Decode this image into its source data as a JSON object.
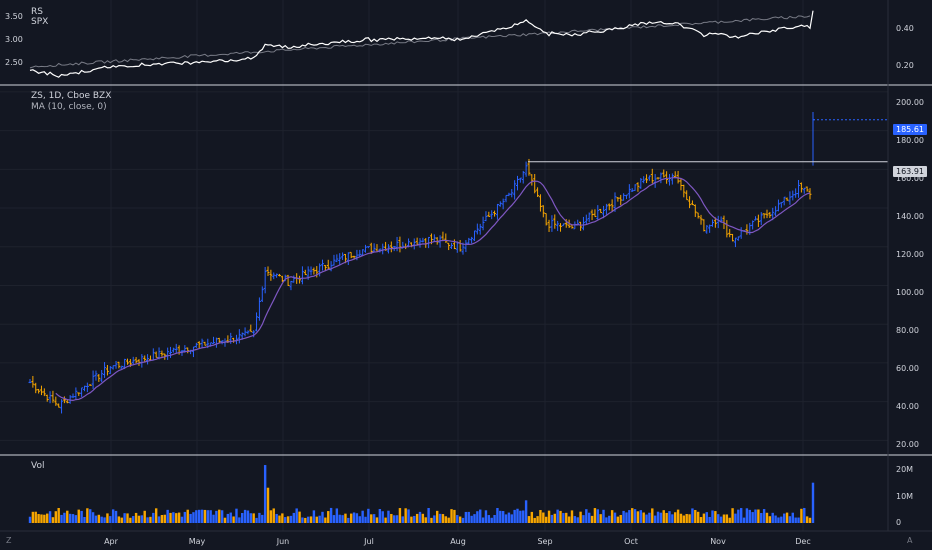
{
  "colors": {
    "background": "#131722",
    "grid": "#1e222d",
    "separator": "#d1d4dc",
    "up": "#2962ff",
    "down": "#f7a600",
    "ma": "#7e57c2",
    "rs": "#ffffff",
    "spx": "#787b86",
    "last_price_bg": "#2962ff",
    "resistance_bg": "#d1d4dc"
  },
  "rs_pane": {
    "labels": [
      "RS",
      "SPX"
    ],
    "left_ticks": [
      "3.50",
      "3.00",
      "2.50"
    ],
    "right_ticks": [
      "0.40",
      "0.20"
    ]
  },
  "price_pane": {
    "symbol_title": "ZS, 1D, Cboe BZX",
    "indicator_title": "MA (10, close, 0)",
    "y_ticks": [
      "200.00",
      "180.00",
      "160.00",
      "140.00",
      "120.00",
      "100.00",
      "80.00",
      "60.00",
      "40.00",
      "20.00"
    ],
    "last_price_tag": "185.61",
    "resistance_tag": "163.91"
  },
  "volume_pane": {
    "label": "Vol",
    "y_ticks": [
      "20M",
      "10M",
      "0"
    ]
  },
  "time_axis": {
    "months": [
      "Apr",
      "May",
      "Jun",
      "Jul",
      "Aug",
      "Sep",
      "Oct",
      "Nov",
      "Dec"
    ]
  },
  "corner_icons": [
    "timezone-icon",
    "auto-scale-icon"
  ],
  "chart_data": {
    "type": "candlestick",
    "symbol": "ZS",
    "interval": "1D",
    "exchange": "Cboe BZX",
    "key_points": [
      {
        "x": "Mar",
        "close": 50
      },
      {
        "x": "Apr",
        "close": 58
      },
      {
        "x": "May",
        "close": 70
      },
      {
        "x": "Jun",
        "close": 85
      },
      {
        "x": "Jun",
        "close": 108
      },
      {
        "x": "Jul",
        "close": 112
      },
      {
        "x": "Aug",
        "close": 124
      },
      {
        "x": "Sep",
        "close": 161
      },
      {
        "x": "Sep",
        "close": 130
      },
      {
        "x": "Oct",
        "close": 158
      },
      {
        "x": "Nov",
        "close": 125
      },
      {
        "x": "Dec",
        "close": 150
      },
      {
        "x": "Dec",
        "close": 185.61
      }
    ],
    "last_close": 185.61,
    "resistance": 163.91,
    "price_ylim": [
      20,
      200
    ],
    "moving_average": {
      "name": "MA (10, close, 0)",
      "period": 10
    },
    "volume_peak_millions": 23,
    "rs_range_left": [
      2.5,
      3.5
    ],
    "rs_range_right": [
      0.2,
      0.4
    ]
  }
}
